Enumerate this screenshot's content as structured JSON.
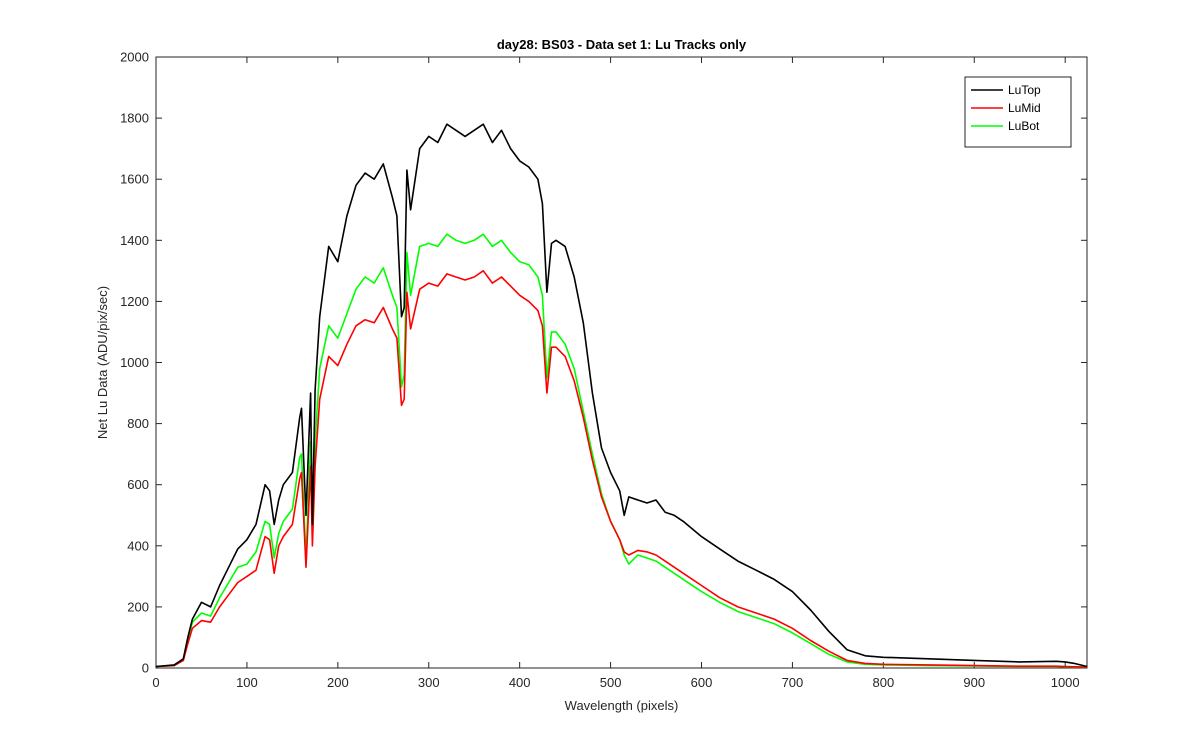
{
  "chart_data": {
    "type": "line",
    "title": "day28: BS03 - Data set 1: Lu Tracks only",
    "xlabel": "Wavelength (pixels)",
    "ylabel": "Net Lu Data (ADU/pix/sec)",
    "xlim": [
      0,
      1024
    ],
    "ylim": [
      0,
      2000
    ],
    "xticks": [
      0,
      100,
      200,
      300,
      400,
      500,
      600,
      700,
      800,
      900,
      1000
    ],
    "yticks": [
      0,
      200,
      400,
      600,
      800,
      1000,
      1200,
      1400,
      1600,
      1800,
      2000
    ],
    "grid": false,
    "legend_position": "top-right",
    "series": [
      {
        "name": "LuTop",
        "color": "#000000",
        "x": [
          0,
          20,
          30,
          35,
          40,
          50,
          60,
          70,
          80,
          90,
          100,
          110,
          120,
          125,
          130,
          135,
          140,
          150,
          158,
          160,
          165,
          170,
          172,
          175,
          180,
          190,
          200,
          210,
          220,
          230,
          240,
          250,
          260,
          265,
          270,
          273,
          276,
          280,
          290,
          300,
          310,
          320,
          330,
          340,
          350,
          360,
          370,
          380,
          390,
          400,
          410,
          420,
          425,
          430,
          435,
          440,
          450,
          460,
          470,
          480,
          490,
          500,
          510,
          515,
          520,
          530,
          540,
          550,
          560,
          570,
          580,
          600,
          620,
          640,
          660,
          680,
          700,
          720,
          740,
          760,
          780,
          800,
          850,
          900,
          950,
          990,
          1000,
          1010,
          1024
        ],
        "y": [
          5,
          10,
          30,
          100,
          160,
          215,
          200,
          270,
          330,
          390,
          420,
          470,
          600,
          580,
          470,
          550,
          600,
          640,
          820,
          850,
          500,
          900,
          470,
          910,
          1150,
          1380,
          1330,
          1480,
          1580,
          1620,
          1600,
          1650,
          1540,
          1480,
          1150,
          1180,
          1630,
          1500,
          1700,
          1740,
          1720,
          1780,
          1760,
          1740,
          1760,
          1780,
          1720,
          1760,
          1700,
          1660,
          1640,
          1600,
          1520,
          1230,
          1390,
          1400,
          1380,
          1280,
          1130,
          900,
          720,
          640,
          580,
          500,
          560,
          550,
          540,
          550,
          510,
          500,
          480,
          430,
          390,
          350,
          320,
          290,
          250,
          190,
          120,
          60,
          40,
          35,
          30,
          25,
          20,
          22,
          20,
          15,
          5
        ]
      },
      {
        "name": "LuMid",
        "color": "#ff0000",
        "x": [
          0,
          20,
          30,
          35,
          40,
          50,
          60,
          70,
          80,
          90,
          100,
          110,
          120,
          125,
          130,
          135,
          140,
          150,
          158,
          160,
          165,
          170,
          172,
          175,
          180,
          190,
          200,
          210,
          220,
          230,
          240,
          250,
          260,
          265,
          270,
          273,
          276,
          280,
          290,
          300,
          310,
          320,
          330,
          340,
          350,
          360,
          370,
          380,
          390,
          400,
          410,
          420,
          425,
          430,
          435,
          440,
          450,
          460,
          470,
          480,
          490,
          500,
          510,
          515,
          520,
          530,
          540,
          550,
          560,
          570,
          580,
          600,
          620,
          640,
          660,
          680,
          700,
          720,
          740,
          760,
          780,
          800,
          850,
          900,
          950,
          990,
          1000,
          1010,
          1024
        ],
        "y": [
          5,
          8,
          25,
          80,
          130,
          155,
          150,
          200,
          240,
          280,
          300,
          320,
          430,
          420,
          310,
          400,
          430,
          470,
          620,
          640,
          330,
          660,
          400,
          660,
          880,
          1020,
          990,
          1060,
          1120,
          1140,
          1130,
          1180,
          1110,
          1080,
          860,
          880,
          1230,
          1110,
          1240,
          1260,
          1250,
          1290,
          1280,
          1270,
          1280,
          1300,
          1260,
          1280,
          1250,
          1220,
          1200,
          1170,
          1120,
          900,
          1050,
          1050,
          1020,
          940,
          820,
          680,
          560,
          480,
          420,
          380,
          370,
          385,
          380,
          370,
          350,
          330,
          310,
          270,
          230,
          200,
          180,
          160,
          130,
          90,
          55,
          25,
          15,
          12,
          10,
          8,
          6,
          6,
          5,
          4,
          3
        ]
      },
      {
        "name": "LuBot",
        "color": "#00ff00",
        "x": [
          0,
          20,
          30,
          35,
          40,
          50,
          60,
          70,
          80,
          90,
          100,
          110,
          120,
          125,
          130,
          135,
          140,
          150,
          158,
          160,
          165,
          170,
          172,
          175,
          180,
          190,
          200,
          210,
          220,
          230,
          240,
          250,
          260,
          265,
          270,
          273,
          276,
          280,
          290,
          300,
          310,
          320,
          330,
          340,
          350,
          360,
          370,
          380,
          390,
          400,
          410,
          420,
          425,
          430,
          435,
          440,
          450,
          460,
          470,
          480,
          490,
          500,
          510,
          515,
          520,
          530,
          540,
          550,
          560,
          570,
          580,
          600,
          620,
          640,
          660,
          680,
          700,
          720,
          740,
          760,
          780,
          800,
          850,
          900,
          950,
          990,
          1000,
          1010,
          1024
        ],
        "y": [
          5,
          8,
          25,
          90,
          150,
          180,
          170,
          230,
          280,
          330,
          340,
          380,
          480,
          470,
          360,
          440,
          480,
          520,
          690,
          700,
          360,
          740,
          430,
          740,
          980,
          1120,
          1080,
          1160,
          1240,
          1280,
          1260,
          1310,
          1220,
          1180,
          920,
          960,
          1360,
          1220,
          1380,
          1390,
          1380,
          1420,
          1400,
          1390,
          1400,
          1420,
          1380,
          1400,
          1360,
          1330,
          1320,
          1280,
          1220,
          950,
          1100,
          1100,
          1060,
          980,
          840,
          700,
          570,
          480,
          420,
          370,
          340,
          370,
          360,
          350,
          330,
          310,
          290,
          250,
          215,
          185,
          165,
          145,
          115,
          80,
          45,
          20,
          12,
          10,
          8,
          7,
          5,
          5,
          4,
          3,
          3
        ]
      }
    ]
  }
}
